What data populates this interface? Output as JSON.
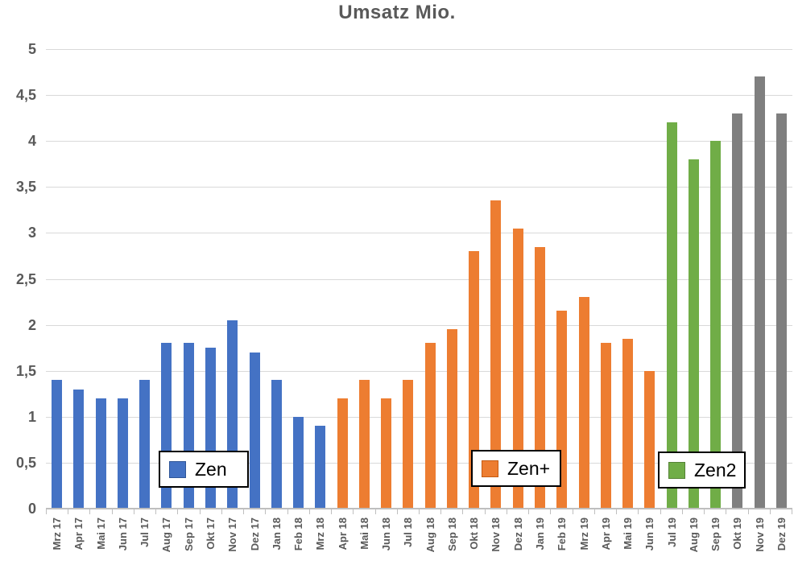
{
  "title": "Umsatz Mio.",
  "colors": {
    "background": "#FFFFFF",
    "title_text": "#595959",
    "axis_text": "#595959",
    "gridline": "#D9D9D9",
    "axis_line": "#BFBFBF",
    "legend_border": "#000000",
    "legend_bg": "#FFFFFF"
  },
  "chart_data": {
    "type": "bar",
    "title": "Umsatz Mio.",
    "xlabel": "",
    "ylabel": "",
    "ylim": [
      0,
      5
    ],
    "grid": true,
    "legend_position": "floating boxes inside plot",
    "yticks": [
      {
        "label": "5",
        "value": 5
      },
      {
        "label": "4,5",
        "value": 4.5
      },
      {
        "label": "4",
        "value": 4
      },
      {
        "label": "3,5",
        "value": 3.5
      },
      {
        "label": "3",
        "value": 3
      },
      {
        "label": "2,5",
        "value": 2.5
      },
      {
        "label": "2",
        "value": 2
      },
      {
        "label": "1,5",
        "value": 1.5
      },
      {
        "label": "1",
        "value": 1
      },
      {
        "label": "0,5",
        "value": 0.5
      },
      {
        "label": "0",
        "value": 0
      }
    ],
    "categories": [
      "Mrz 17",
      "Apr 17",
      "Mai 17",
      "Jun 17",
      "Jul 17",
      "Aug 17",
      "Sep 17",
      "Okt 17",
      "Nov 17",
      "Dez 17",
      "Jan 18",
      "Feb 18",
      "Mrz 18",
      "Apr 18",
      "Mai 18",
      "Jun 18",
      "Jul 18",
      "Aug 18",
      "Sep 18",
      "Okt 18",
      "Nov 18",
      "Dez 18",
      "Jan 19",
      "Feb 19",
      "Mrz 19",
      "Apr 19",
      "Mai 19",
      "Jun 19",
      "Jul 19",
      "Aug 19",
      "Sep 19",
      "Okt 19",
      "Nov 19",
      "Dez 19"
    ],
    "series": [
      {
        "name": "Zen",
        "color": "#4472C4",
        "swatch_border": "#2F5597",
        "in_legend": true,
        "values": [
          1.4,
          1.3,
          1.2,
          1.2,
          1.4,
          1.8,
          1.8,
          1.75,
          2.05,
          1.7,
          1.4,
          1.0,
          0.9,
          null,
          null,
          null,
          null,
          null,
          null,
          null,
          null,
          null,
          null,
          null,
          null,
          null,
          null,
          null,
          null,
          null,
          null,
          null,
          null,
          null
        ]
      },
      {
        "name": "Zen+",
        "color": "#ED7D31",
        "swatch_border": "#C55A11",
        "in_legend": true,
        "values": [
          null,
          null,
          null,
          null,
          null,
          null,
          null,
          null,
          null,
          null,
          null,
          null,
          null,
          1.2,
          1.4,
          1.2,
          1.4,
          1.8,
          1.95,
          2.8,
          3.35,
          3.05,
          2.85,
          2.15,
          2.3,
          1.8,
          1.85,
          1.5,
          null,
          null,
          null,
          null,
          null,
          null
        ]
      },
      {
        "name": "Zen2",
        "color": "#70AD47",
        "swatch_border": "#548235",
        "in_legend": true,
        "values": [
          null,
          null,
          null,
          null,
          null,
          null,
          null,
          null,
          null,
          null,
          null,
          null,
          null,
          null,
          null,
          null,
          null,
          null,
          null,
          null,
          null,
          null,
          null,
          null,
          null,
          null,
          null,
          null,
          4.2,
          3.8,
          4.0,
          null,
          null,
          null
        ]
      },
      {
        "name": "",
        "color": "#7F7F7F",
        "swatch_border": "#595959",
        "in_legend": false,
        "values": [
          null,
          null,
          null,
          null,
          null,
          null,
          null,
          null,
          null,
          null,
          null,
          null,
          null,
          null,
          null,
          null,
          null,
          null,
          null,
          null,
          null,
          null,
          null,
          null,
          null,
          null,
          null,
          null,
          null,
          null,
          null,
          4.3,
          4.7,
          4.3
        ]
      }
    ],
    "legend_boxes": [
      "Zen",
      "Zen+",
      "Zen2"
    ]
  }
}
